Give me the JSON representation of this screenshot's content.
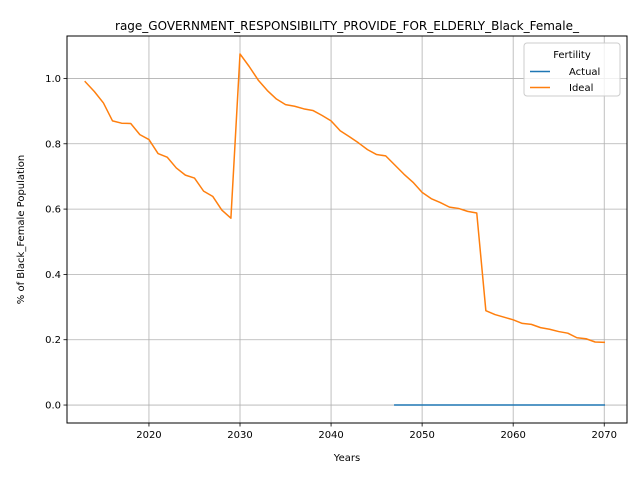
{
  "chart_data": {
    "type": "line",
    "title": "rage_GOVERNMENT_RESPONSIBILITY_PROVIDE_FOR_ELDERLY_Black_Female_",
    "xlabel": "Years",
    "ylabel": "% of Black_Female Population",
    "xlim": [
      2011,
      2072.5
    ],
    "ylim": [
      -0.055,
      1.13
    ],
    "xticks": [
      2020,
      2030,
      2040,
      2050,
      2060,
      2070
    ],
    "yticks": [
      0.0,
      0.2,
      0.4,
      0.6,
      0.8,
      1.0
    ],
    "xtick_labels": [
      "2020",
      "2030",
      "2040",
      "2050",
      "2060",
      "2070"
    ],
    "ytick_labels": [
      "0.0",
      "0.2",
      "0.4",
      "0.6",
      "0.8",
      "1.0"
    ],
    "grid": true,
    "legend": {
      "title": "Fertility",
      "placement": "top-right"
    },
    "series": [
      {
        "name": "Actual",
        "color": "#1f77b4",
        "x": [
          2047,
          2048,
          2049,
          2050,
          2051,
          2052,
          2053,
          2054,
          2055,
          2056,
          2057,
          2058,
          2059,
          2060,
          2061,
          2062,
          2063,
          2064,
          2065,
          2066,
          2067,
          2068,
          2069,
          2070
        ],
        "y": [
          0,
          0,
          0,
          0,
          0,
          0,
          0,
          0,
          0,
          0,
          0,
          0,
          0,
          0,
          0,
          0,
          0,
          0,
          0,
          0,
          0,
          0,
          0,
          0
        ]
      },
      {
        "name": "Ideal",
        "color": "#ff7f0e",
        "x": [
          2013,
          2014,
          2015,
          2016,
          2017,
          2018,
          2019,
          2020,
          2021,
          2022,
          2023,
          2024,
          2025,
          2026,
          2027,
          2028,
          2029,
          2030,
          2031,
          2032,
          2033,
          2034,
          2035,
          2036,
          2037,
          2038,
          2039,
          2040,
          2041,
          2042,
          2043,
          2044,
          2045,
          2046,
          2047,
          2048,
          2049,
          2050,
          2051,
          2052,
          2053,
          2054,
          2055,
          2056,
          2057,
          2058,
          2059,
          2060,
          2061,
          2062,
          2063,
          2064,
          2065,
          2066,
          2067,
          2068,
          2069,
          2070
        ],
        "y": [
          0.99,
          0.96,
          0.925,
          0.87,
          0.863,
          0.862,
          0.828,
          0.813,
          0.77,
          0.759,
          0.726,
          0.704,
          0.695,
          0.655,
          0.639,
          0.597,
          0.572,
          1.075,
          1.037,
          0.995,
          0.963,
          0.937,
          0.92,
          0.915,
          0.907,
          0.902,
          0.887,
          0.87,
          0.84,
          0.822,
          0.803,
          0.782,
          0.767,
          0.763,
          0.735,
          0.707,
          0.682,
          0.651,
          0.632,
          0.62,
          0.606,
          0.602,
          0.593,
          0.588,
          0.289,
          0.277,
          0.269,
          0.261,
          0.25,
          0.247,
          0.237,
          0.232,
          0.225,
          0.22,
          0.206,
          0.203,
          0.193,
          0.192
        ]
      }
    ]
  }
}
